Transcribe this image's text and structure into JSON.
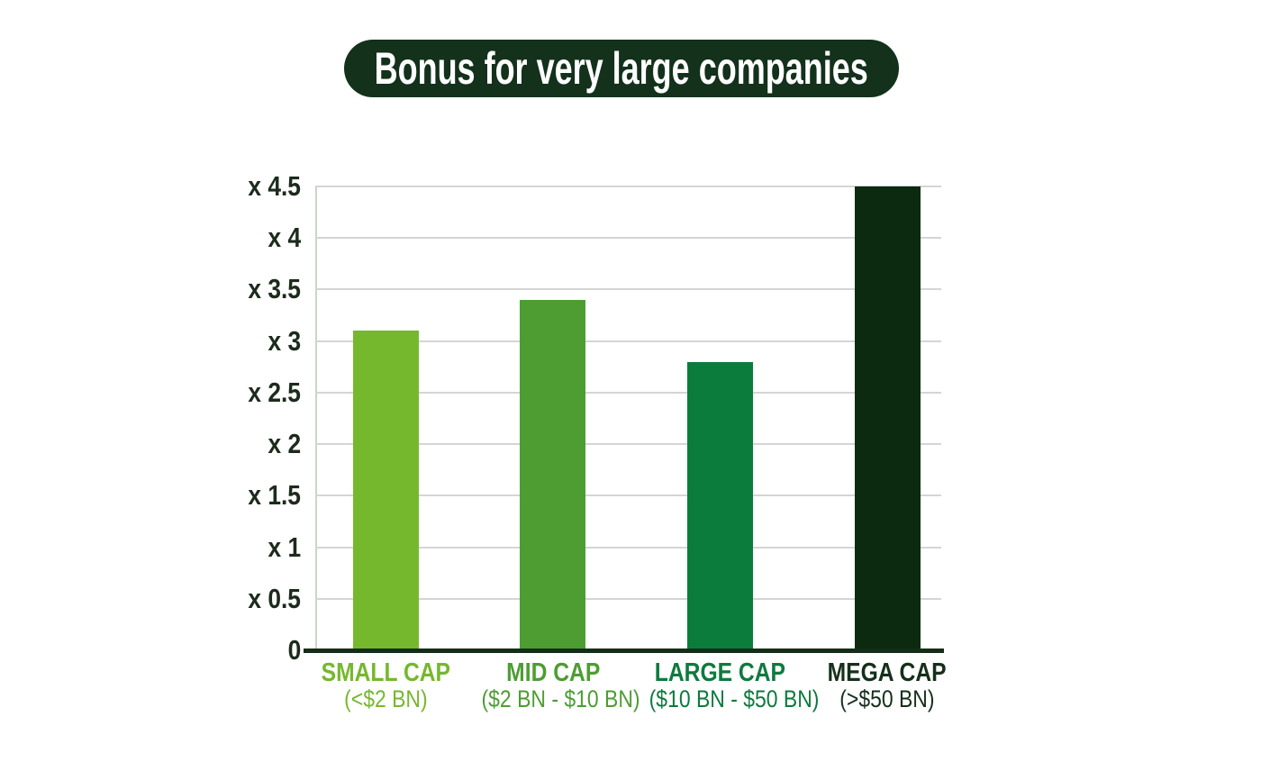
{
  "title": "Bonus for very large companies",
  "colors": {
    "background": "#ffffff",
    "title_bg": "#13311b",
    "title_text": "#ffffff",
    "axis_text": "#1c2b1c",
    "gridline": "#d3d6d3",
    "y_axis_line": "#c7d7c6",
    "baseline": "#142d18"
  },
  "chart_data": {
    "type": "bar",
    "title": "Bonus for very large companies",
    "categories": [
      "SMALL CAP",
      "MID CAP",
      "LARGE CAP",
      "MEGA CAP"
    ],
    "category_sublabels": [
      "(<$2 BN)",
      "($2 BN - $10 BN)",
      "($10 BN - $50 BN)",
      "(>$50 BN)"
    ],
    "values": [
      3.1,
      3.4,
      2.8,
      4.5
    ],
    "bar_colors": [
      "#76b82d",
      "#4d9d33",
      "#0b7c3c",
      "#0c2a10"
    ],
    "label_colors": [
      "#76b82d",
      "#4d9d33",
      "#0e7a3e",
      "#14301a"
    ],
    "xlabel": "",
    "ylabel": "",
    "ylim": [
      0,
      4.5
    ],
    "grid": "horizontal",
    "legend": "none",
    "yticks": [
      {
        "value": 0,
        "label": "0"
      },
      {
        "value": 0.5,
        "label": "x 0.5"
      },
      {
        "value": 1,
        "label": "x 1"
      },
      {
        "value": 1.5,
        "label": "x 1.5"
      },
      {
        "value": 2,
        "label": "x 2"
      },
      {
        "value": 2.5,
        "label": "x 2.5"
      },
      {
        "value": 3,
        "label": "x 3"
      },
      {
        "value": 3.5,
        "label": "x 3.5"
      },
      {
        "value": 4,
        "label": "x 4"
      },
      {
        "value": 4.5,
        "label": "x 4.5"
      }
    ]
  }
}
